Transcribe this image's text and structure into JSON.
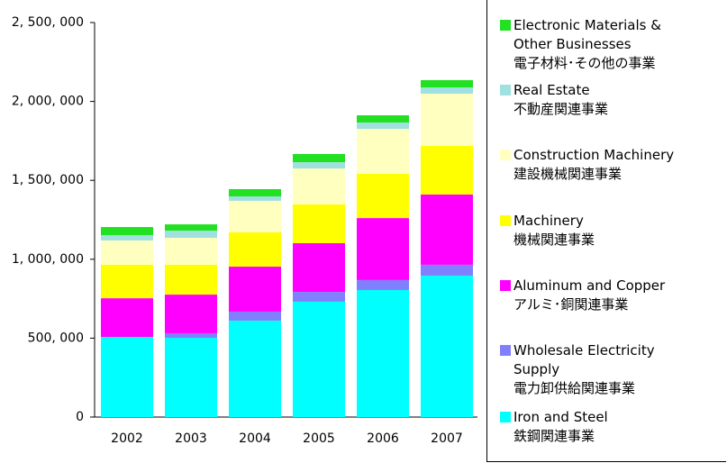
{
  "chart_data": {
    "type": "stacked_bar",
    "categories": [
      "2002",
      "2003",
      "2004",
      "2005",
      "2006",
      "2007"
    ],
    "series": [
      {
        "name": "Iron and Steel\n鉄鋼関連事業",
        "color": "#00ffff",
        "values": [
          508000,
          502000,
          611000,
          731000,
          805000,
          896000
        ]
      },
      {
        "name": "Wholesale Electricity\nSupply\n電力卸供給関連事業",
        "color": "#8080ff",
        "values": [
          0,
          29000,
          57000,
          62000,
          63000,
          69000
        ]
      },
      {
        "name": "Aluminum and Copper\nアルミ･銅関連事業",
        "color": "#ff00ff",
        "values": [
          245000,
          245000,
          285000,
          309000,
          393000,
          445000
        ]
      },
      {
        "name": "Machinery\n機械関連事業",
        "color": "#ffff00",
        "values": [
          212000,
          189000,
          217000,
          245000,
          280000,
          308000
        ]
      },
      {
        "name": "Construction Machinery\n建設機械関連事業",
        "color": "#ffffc0",
        "values": [
          154000,
          171000,
          200000,
          228000,
          285000,
          331000
        ]
      },
      {
        "name": "Real Estate\n不動産関連事業",
        "color": "#a0e0e0",
        "values": [
          34000,
          45000,
          28000,
          40000,
          40000,
          40000
        ]
      },
      {
        "name": "Electronic Materials &\nOther Businesses\n電子材料･その他の事業",
        "color": "#22e022",
        "values": [
          51000,
          40000,
          46000,
          52000,
          46000,
          46000
        ]
      }
    ],
    "ylim": [
      0,
      2500000
    ],
    "yticks": [
      0,
      {
        "value": 500000,
        "label": "500, 000"
      },
      {
        "value": 1000000,
        "label": "1, 000, 000"
      },
      {
        "value": 1500000,
        "label": "1, 500, 000"
      },
      {
        "value": 2000000,
        "label": "2, 000, 000"
      },
      {
        "value": 2500000,
        "label": "2, 500, 000"
      }
    ],
    "legend": "right"
  }
}
